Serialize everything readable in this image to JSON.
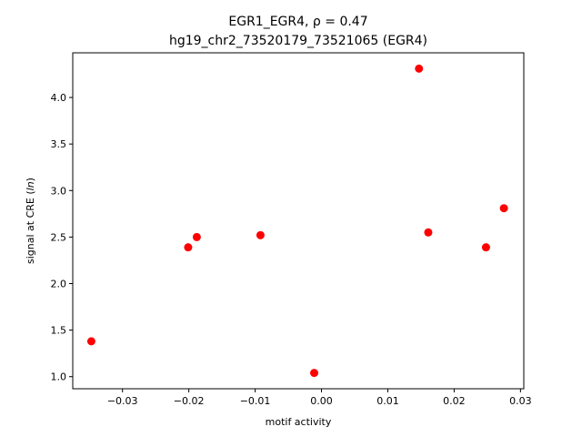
{
  "chart_data": {
    "type": "scatter",
    "title_line1": "EGR1_EGR4, ρ = 0.47",
    "title_line2": "hg19_chr2_73520179_73521065 (EGR4)",
    "xlabel": "motif activity",
    "ylabel": "signal at CRE (ln)",
    "xlim": [
      -0.0375,
      0.0305
    ],
    "ylim": [
      0.87,
      4.48
    ],
    "xticks": [
      {
        "value": -0.03,
        "label": "−0.03"
      },
      {
        "value": -0.02,
        "label": "−0.02"
      },
      {
        "value": -0.01,
        "label": "−0.01"
      },
      {
        "value": 0.0,
        "label": "0.00"
      },
      {
        "value": 0.01,
        "label": "0.01"
      },
      {
        "value": 0.02,
        "label": "0.02"
      },
      {
        "value": 0.03,
        "label": "0.03"
      }
    ],
    "yticks": [
      {
        "value": 1.0,
        "label": "1.0"
      },
      {
        "value": 1.5,
        "label": "1.5"
      },
      {
        "value": 2.0,
        "label": "2.0"
      },
      {
        "value": 2.5,
        "label": "2.5"
      },
      {
        "value": 3.0,
        "label": "3.0"
      },
      {
        "value": 3.5,
        "label": "3.5"
      },
      {
        "value": 4.0,
        "label": "4.0"
      }
    ],
    "grid": false,
    "marker_color": "#ff0000",
    "points": [
      {
        "x": -0.0347,
        "y": 1.38
      },
      {
        "x": -0.0201,
        "y": 2.39
      },
      {
        "x": -0.0188,
        "y": 2.5
      },
      {
        "x": -0.0092,
        "y": 2.52
      },
      {
        "x": -0.0011,
        "y": 1.04
      },
      {
        "x": 0.0147,
        "y": 4.31
      },
      {
        "x": 0.0161,
        "y": 2.55
      },
      {
        "x": 0.0248,
        "y": 2.39
      },
      {
        "x": 0.0275,
        "y": 2.81
      }
    ]
  }
}
